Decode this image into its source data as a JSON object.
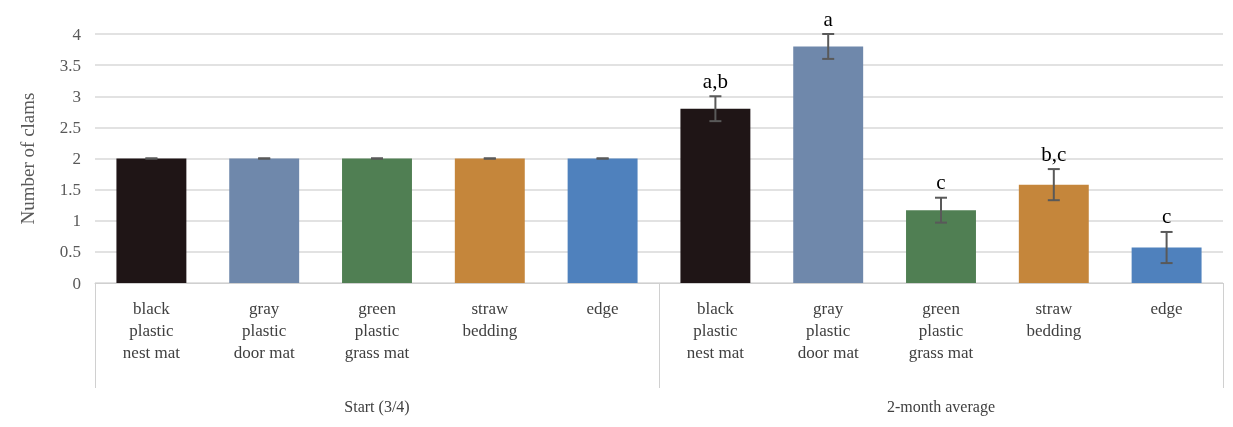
{
  "chart_data": {
    "type": "bar",
    "ylabel": "Number of clams",
    "categories": [
      "black plastic nest mat",
      "gray plastic door mat",
      "green plastic grass mat",
      "straw bedding",
      "edge",
      "black plastic nest mat",
      "gray plastic door mat",
      "green plastic grass mat",
      "straw bedding",
      "edge"
    ],
    "values": [
      2,
      2,
      2,
      2,
      2,
      2.8,
      3.8,
      1.17,
      1.58,
      0.57
    ],
    "colors": [
      "#1f1516",
      "#6f88ab",
      "#507f53",
      "#c5863b",
      "#4f81bd",
      "#1f1516",
      "#6f88ab",
      "#507f53",
      "#c5863b",
      "#4f81bd"
    ],
    "errors": [
      0,
      0,
      0,
      0,
      0,
      0.2,
      0.2,
      0.2,
      0.25,
      0.25
    ],
    "value_labels": [
      null,
      null,
      null,
      null,
      null,
      "a,b",
      "a",
      "c",
      "b,c",
      "c"
    ],
    "annotations": [
      "Start (3/4)",
      "2-month average"
    ],
    "ylim": [
      0,
      4
    ],
    "yticks": [
      0,
      0.5,
      1,
      1.5,
      2,
      2.5,
      3,
      3.5,
      4
    ],
    "grid": "y"
  }
}
